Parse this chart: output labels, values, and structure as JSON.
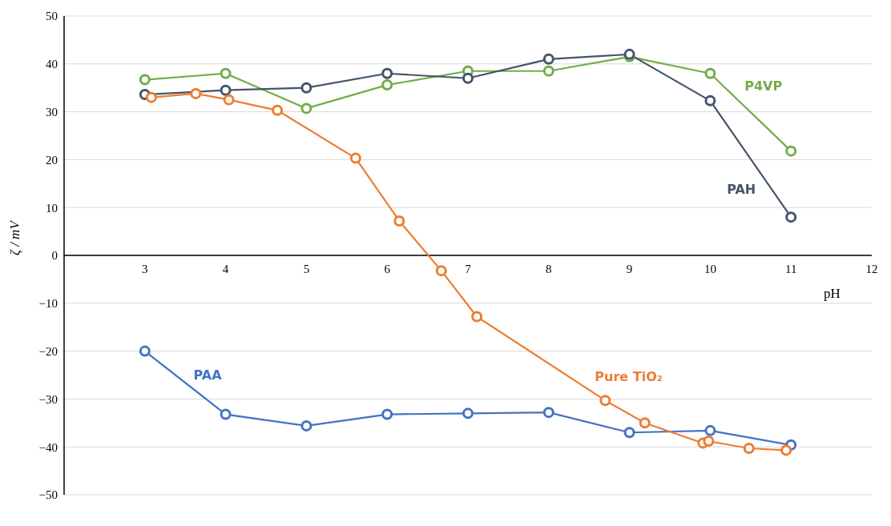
{
  "chart_data": {
    "type": "line",
    "xlabel": "pH",
    "ylabel": "ζ / mV",
    "xlim": [
      2,
      12
    ],
    "xticks": [
      3,
      4,
      5,
      6,
      7,
      8,
      9,
      10,
      11,
      12
    ],
    "ylim": [
      -50,
      50
    ],
    "yticks": [
      {
        "value": -50,
        "label": "−50"
      },
      {
        "value": -40,
        "label": "−40"
      },
      {
        "value": -30,
        "label": "−30"
      },
      {
        "value": -20,
        "label": "−20"
      },
      {
        "value": -10,
        "label": "−10"
      },
      0,
      10,
      20,
      30,
      40,
      50
    ],
    "grid": "y",
    "marker": "circle",
    "line_style": "solid",
    "series": [
      {
        "name": "P4VP",
        "color": "#70ad47",
        "x": [
          3,
          4,
          5,
          6,
          7,
          8,
          9,
          10,
          11
        ],
        "values": [
          36.7,
          38,
          30.7,
          35.6,
          38.5,
          38.5,
          41.5,
          38,
          21.8
        ]
      },
      {
        "name": "PAH",
        "color": "#44546a",
        "x": [
          3,
          4,
          5,
          6,
          7,
          8,
          9,
          10,
          11
        ],
        "values": [
          33.6,
          34.5,
          35,
          38,
          37,
          41,
          42,
          32.3,
          8
        ]
      },
      {
        "name": "PAA",
        "color": "#4472c4",
        "x": [
          3,
          4,
          5,
          6,
          7,
          8,
          9,
          10,
          11
        ],
        "values": [
          -20,
          -33.2,
          -35.6,
          -33.2,
          -33,
          -32.8,
          -37,
          -36.6,
          -39.6
        ]
      },
      {
        "name": "Pure TiO₂",
        "color": "#ed7d31",
        "x": [
          3.08,
          3.63,
          4.04,
          4.64,
          5.61,
          6.15,
          6.67,
          7.11,
          8.7,
          9.19,
          9.91,
          9.98,
          10.48,
          10.94
        ],
        "values": [
          33,
          33.8,
          32.5,
          30.3,
          20.3,
          7.2,
          -3.2,
          -12.8,
          -30.3,
          -35,
          -39.2,
          -38.8,
          -40.3,
          -40.7
        ]
      }
    ]
  }
}
